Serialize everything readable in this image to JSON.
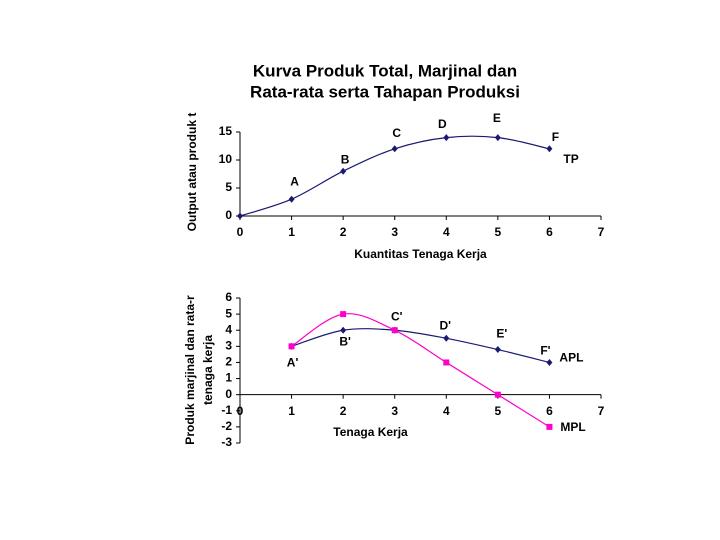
{
  "chart_data": [
    {
      "type": "line",
      "title": [
        "Kurva Produk Total, Marjinal dan",
        "Rata-rata serta Tahapan Produksi"
      ],
      "y_label": "Output atau produk t",
      "x_label": "Kuantitas Tenaga Kerja",
      "xlim": [
        0,
        7
      ],
      "xticks": [
        0,
        1,
        2,
        3,
        4,
        5,
        6,
        7
      ],
      "ylim": [
        0,
        15
      ],
      "yticks": [
        0,
        5,
        10,
        15
      ],
      "series": [
        {
          "name": "TP",
          "color": "#1a1a70",
          "marker": "diamond",
          "x": [
            0,
            1,
            2,
            3,
            4,
            5,
            6
          ],
          "values": [
            0,
            3,
            8,
            12,
            14,
            14,
            12
          ],
          "point_labels": [
            null,
            "A",
            "B",
            "C",
            "D",
            "E",
            "F"
          ]
        }
      ]
    },
    {
      "type": "line",
      "y_label": [
        "Produk marjinal dan rata-r",
        "tenaga kerja"
      ],
      "x_label": "Tenaga Kerja",
      "xlim": [
        0,
        7
      ],
      "xticks": [
        0,
        1,
        2,
        3,
        4,
        5,
        6,
        7
      ],
      "ylim": [
        -3,
        6
      ],
      "yticks": [
        -3,
        -2,
        -1,
        0,
        1,
        2,
        3,
        4,
        5,
        6
      ],
      "series": [
        {
          "name": "APL",
          "color": "#1a1a70",
          "marker": "diamond",
          "x": [
            1,
            2,
            3,
            4,
            5,
            6
          ],
          "values": [
            3,
            4,
            4,
            3.5,
            2.8,
            2
          ],
          "point_labels": [
            "A'",
            "B'",
            "C'",
            "D'",
            "E'",
            "F'"
          ]
        },
        {
          "name": "MPL",
          "color": "#ff00cc",
          "marker": "square",
          "x": [
            1,
            2,
            3,
            4,
            5,
            6
          ],
          "values": [
            3,
            5,
            4,
            2,
            0,
            -2
          ]
        }
      ]
    }
  ]
}
